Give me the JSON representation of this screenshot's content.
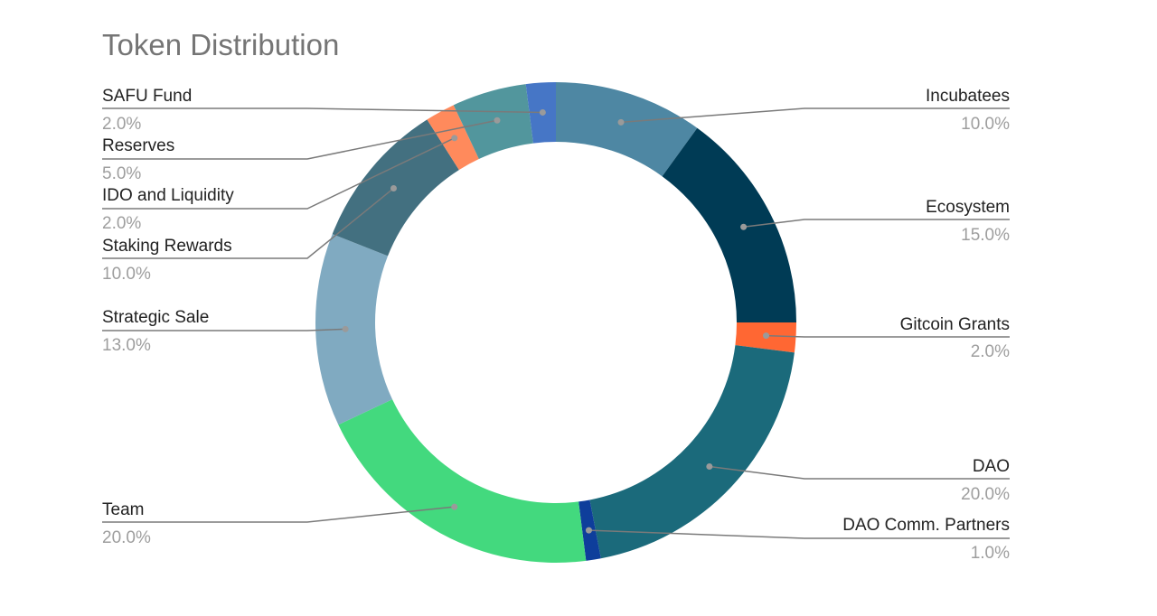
{
  "chart_data": {
    "type": "pie",
    "variant": "donut",
    "title": "Token Distribution",
    "slices": [
      {
        "label": "Incubatees",
        "value": 10.0,
        "display": "10.0%",
        "color": "#4e87a3",
        "side": "right"
      },
      {
        "label": "Ecosystem",
        "value": 15.0,
        "display": "15.0%",
        "color": "#003b55",
        "side": "right"
      },
      {
        "label": "Gitcoin Grants",
        "value": 2.0,
        "display": "2.0%",
        "color": "#ff6733",
        "side": "right"
      },
      {
        "label": "DAO",
        "value": 20.0,
        "display": "20.0%",
        "color": "#1b6a7b",
        "side": "right"
      },
      {
        "label": "DAO Comm. Partners",
        "value": 1.0,
        "display": "1.0%",
        "color": "#0e3e9b",
        "side": "right"
      },
      {
        "label": "Team",
        "value": 20.0,
        "display": "20.0%",
        "color": "#43d97e",
        "side": "left"
      },
      {
        "label": "Strategic Sale",
        "value": 13.0,
        "display": "13.0%",
        "color": "#80aac1",
        "side": "left"
      },
      {
        "label": "Staking Rewards",
        "value": 10.0,
        "display": "10.0%",
        "color": "#437080",
        "side": "left"
      },
      {
        "label": "IDO and Liquidity",
        "value": 2.0,
        "display": "2.0%",
        "color": "#ff8a5c",
        "side": "left"
      },
      {
        "label": "Reserves",
        "value": 5.0,
        "display": "5.0%",
        "color": "#52969d",
        "side": "left"
      },
      {
        "label": "SAFU Fund",
        "value": 2.0,
        "display": "2.0%",
        "color": "#4676c6",
        "side": "left"
      }
    ],
    "legend": "labels beside slices with leader lines",
    "start_angle_deg": 0,
    "direction": "clockwise"
  }
}
